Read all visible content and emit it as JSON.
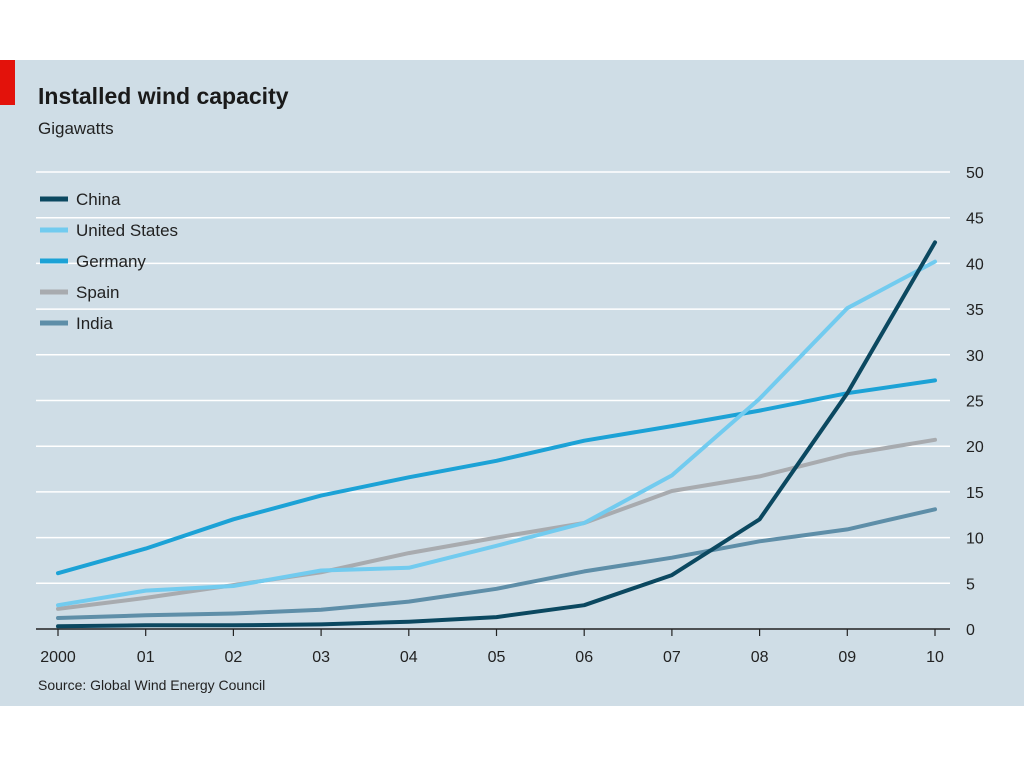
{
  "chart_data": {
    "type": "line",
    "title": "Installed wind capacity",
    "subtitle": "Gigawatts",
    "source": "Source: Global Wind Energy Council",
    "x": [
      "2000",
      "01",
      "02",
      "03",
      "04",
      "05",
      "06",
      "07",
      "08",
      "09",
      "10"
    ],
    "ylim": [
      0,
      50
    ],
    "yticks": [
      0,
      5,
      10,
      15,
      20,
      25,
      30,
      35,
      40,
      45,
      50
    ],
    "y_axis_side": "right",
    "grid": true,
    "legend_position": "top-left",
    "series": [
      {
        "name": "China",
        "color": "#0b4860",
        "values": [
          0.3,
          0.4,
          0.4,
          0.5,
          0.8,
          1.3,
          2.6,
          5.9,
          12.0,
          25.8,
          42.3
        ]
      },
      {
        "name": "United States",
        "color": "#72cbef",
        "values": [
          2.6,
          4.2,
          4.7,
          6.4,
          6.7,
          9.1,
          11.6,
          16.8,
          25.2,
          35.1,
          40.2
        ]
      },
      {
        "name": "Germany",
        "color": "#1ca2d6",
        "values": [
          6.1,
          8.8,
          12.0,
          14.6,
          16.6,
          18.4,
          20.6,
          22.2,
          23.9,
          25.8,
          27.2
        ]
      },
      {
        "name": "Spain",
        "color": "#a8abaf",
        "values": [
          2.2,
          3.4,
          4.8,
          6.2,
          8.3,
          10.0,
          11.6,
          15.1,
          16.7,
          19.1,
          20.7
        ]
      },
      {
        "name": "India",
        "color": "#5e8ea8",
        "values": [
          1.2,
          1.5,
          1.7,
          2.1,
          3.0,
          4.4,
          6.3,
          7.8,
          9.6,
          10.9,
          13.1
        ]
      }
    ]
  }
}
